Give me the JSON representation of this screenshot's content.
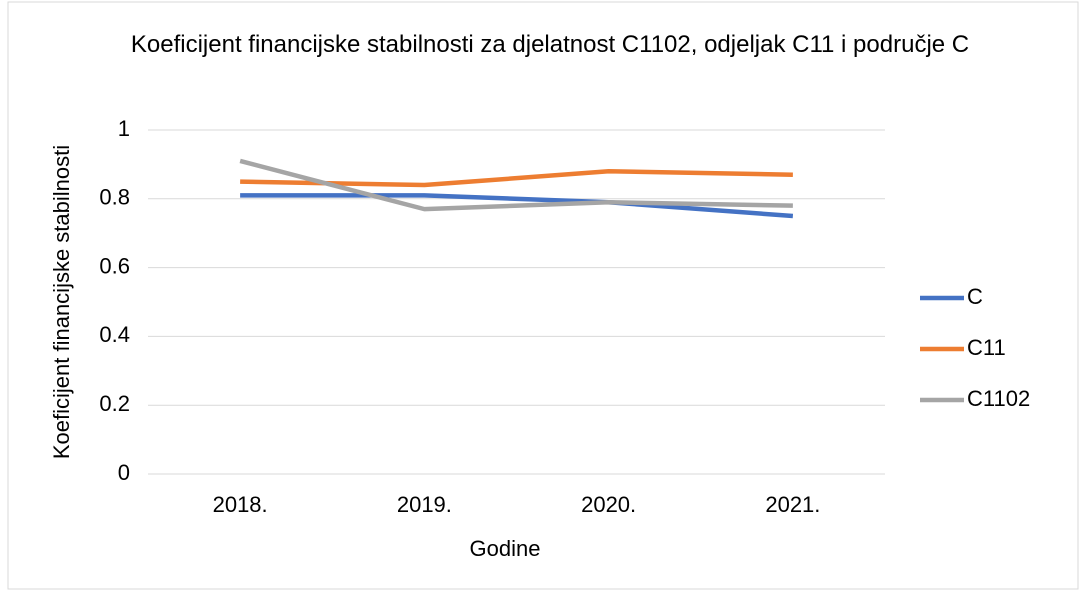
{
  "chart_data": {
    "type": "line",
    "title": "Koeficijent financijske stabilnosti za djelatnost C1102, odjeljak C11 i područje C",
    "xlabel": "Godine",
    "ylabel": "Koeficijent financijske stabilnosti",
    "categories": [
      "2018.",
      "2019.",
      "2020.",
      "2021."
    ],
    "series": [
      {
        "name": "C",
        "color": "#4472c4",
        "values": [
          0.81,
          0.81,
          0.79,
          0.75
        ]
      },
      {
        "name": "C11",
        "color": "#ed7d31",
        "values": [
          0.85,
          0.84,
          0.88,
          0.87
        ]
      },
      {
        "name": "C1102",
        "color": "#a5a5a5",
        "values": [
          0.91,
          0.77,
          0.79,
          0.78
        ]
      }
    ],
    "ylim": [
      0,
      1
    ],
    "yticks": [
      0,
      0.2,
      0.4,
      0.6,
      0.8,
      1
    ],
    "grid": true,
    "legend": "right"
  }
}
